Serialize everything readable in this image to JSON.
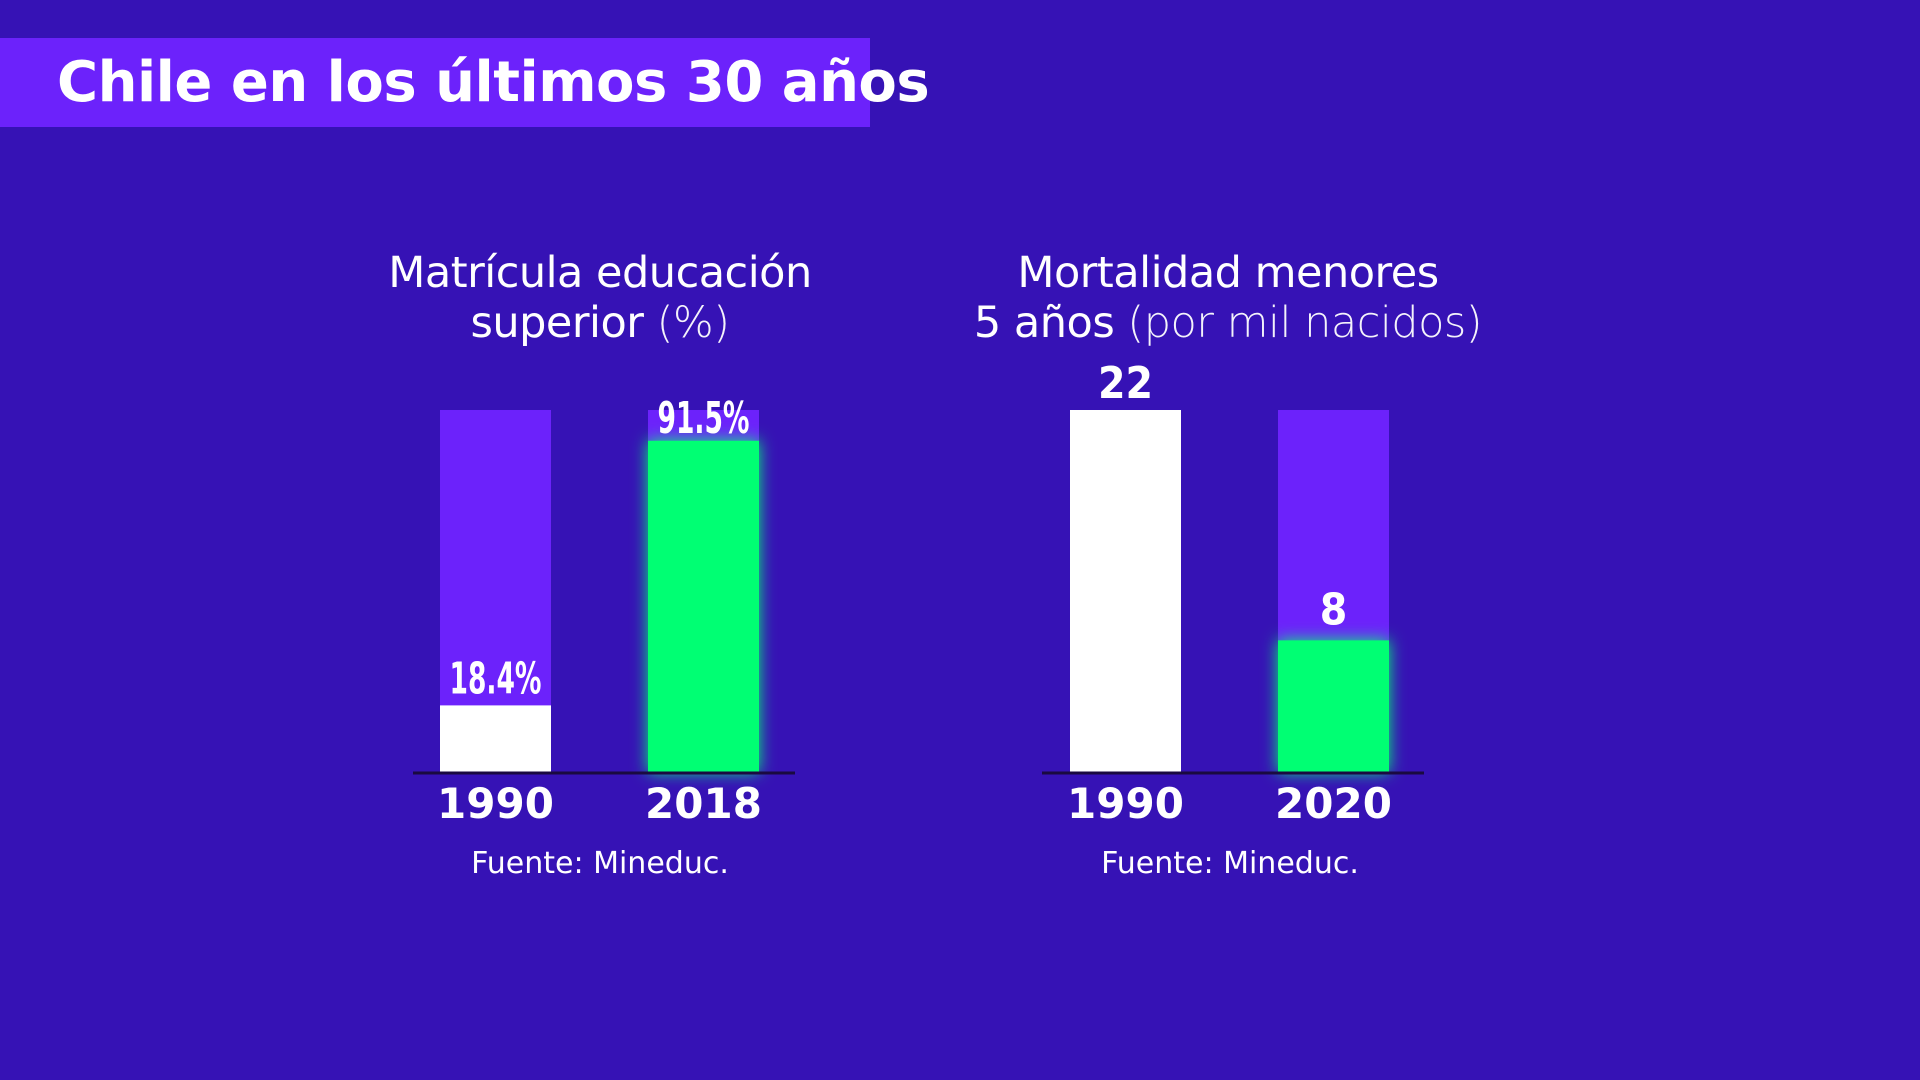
{
  "header": {
    "title": "Chile en los últimos 30 años"
  },
  "colors": {
    "background": "#3612b5",
    "accent_purple": "#6c22fb",
    "highlight_green": "#00ff73",
    "baseline": "#1a0a40",
    "text": "#ffffff"
  },
  "chart_data": [
    {
      "type": "bar",
      "title_main": "Matrícula educación",
      "title_line2": "superior",
      "title_unit": "(%)",
      "categories": [
        "1990",
        "2018"
      ],
      "values": [
        18.4,
        91.5
      ],
      "value_labels": [
        "18.4%",
        "91.5%"
      ],
      "ylim": [
        0,
        100
      ],
      "bar_colors": [
        "#ffffff",
        "#00ff73"
      ],
      "track_color": "#6c22fb",
      "source": "Fuente: Mineduc."
    },
    {
      "type": "bar",
      "title_main": "Mortalidad menores",
      "title_line2": "5 años",
      "title_unit": "(por mil nacidos)",
      "categories": [
        "1990",
        "2020"
      ],
      "values": [
        22,
        8
      ],
      "value_labels": [
        "22",
        "8"
      ],
      "ylim": [
        0,
        22
      ],
      "bar_colors": [
        "#ffffff",
        "#00ff73"
      ],
      "track_color": "#6c22fb",
      "source": "Fuente: Mineduc."
    }
  ]
}
